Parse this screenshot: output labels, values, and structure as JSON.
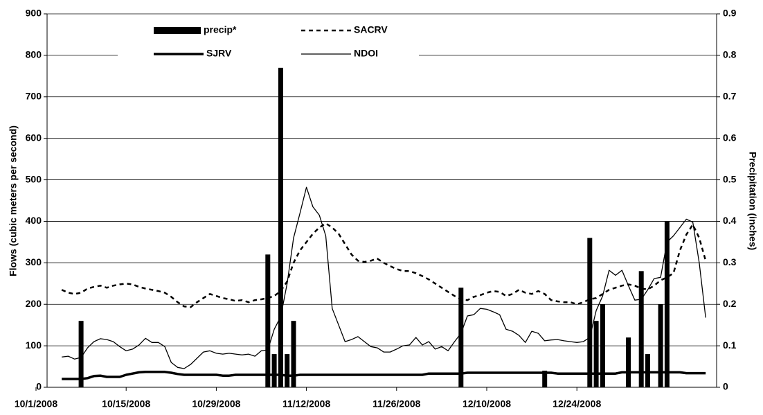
{
  "chart_data": {
    "type": "combo",
    "ylabel": "Flows (cubic meters per second)",
    "y2label": "Precipitation (inches)",
    "categories": [
      "10/1/2008",
      null,
      null,
      null,
      null,
      null,
      null,
      null,
      null,
      null,
      null,
      null,
      null,
      null,
      "10/15/2008",
      null,
      null,
      null,
      null,
      null,
      null,
      null,
      null,
      null,
      null,
      null,
      null,
      null,
      "10/29/2008",
      null,
      null,
      null,
      null,
      null,
      null,
      null,
      null,
      null,
      null,
      null,
      null,
      null,
      "11/12/2008",
      null,
      null,
      null,
      null,
      null,
      null,
      null,
      null,
      null,
      null,
      null,
      null,
      null,
      "11/26/2008",
      null,
      null,
      null,
      null,
      null,
      null,
      null,
      null,
      null,
      null,
      null,
      null,
      null,
      "12/10/2008",
      null,
      null,
      null,
      null,
      null,
      null,
      null,
      null,
      null,
      null,
      null,
      null,
      null,
      "12/24/2008",
      null,
      null,
      null,
      null,
      null,
      null,
      null,
      null,
      null,
      null,
      null,
      null,
      null,
      null,
      null,
      null,
      null,
      null,
      null,
      null
    ],
    "ylim": [
      0,
      900
    ],
    "yticks": [
      0,
      100,
      200,
      300,
      400,
      500,
      600,
      700,
      800,
      900
    ],
    "y2lim": [
      0,
      0.9
    ],
    "y2ticks": [
      0,
      0.1,
      0.2,
      0.3,
      0.4,
      0.5,
      0.6,
      0.7,
      0.8,
      0.9
    ],
    "grid": true,
    "legend": "top",
    "series": [
      {
        "name": "precip*",
        "type": "bar",
        "axis": "y2",
        "color": "#000000",
        "values": [
          null,
          null,
          null,
          null,
          null,
          null,
          null,
          0.16,
          null,
          null,
          null,
          null,
          null,
          null,
          null,
          null,
          null,
          null,
          null,
          null,
          null,
          null,
          null,
          null,
          null,
          null,
          null,
          null,
          null,
          null,
          null,
          null,
          null,
          null,
          null,
          null,
          0.32,
          0.08,
          0.77,
          0.08,
          0.16,
          null,
          null,
          null,
          null,
          null,
          null,
          null,
          null,
          null,
          null,
          null,
          null,
          null,
          null,
          null,
          null,
          null,
          null,
          null,
          null,
          null,
          null,
          null,
          null,
          null,
          0.24,
          null,
          null,
          null,
          null,
          null,
          null,
          null,
          null,
          null,
          null,
          null,
          null,
          0.04,
          null,
          null,
          null,
          null,
          null,
          null,
          0.36,
          0.16,
          0.2,
          null,
          null,
          null,
          0.12,
          null,
          0.28,
          0.08,
          null,
          0.2,
          0.4,
          null,
          null,
          null,
          null,
          null,
          null
        ]
      },
      {
        "name": "SACRV",
        "type": "line",
        "color": "#000000",
        "linestyle": "dashed",
        "linewidth": 2.5,
        "values": [
          null,
          null,
          null,
          null,
          235,
          228,
          225,
          228,
          238,
          242,
          245,
          240,
          245,
          248,
          250,
          248,
          242,
          238,
          235,
          232,
          228,
          218,
          205,
          195,
          193,
          205,
          215,
          225,
          220,
          215,
          212,
          208,
          210,
          205,
          210,
          212,
          215,
          220,
          232,
          255,
          300,
          330,
          350,
          370,
          385,
          395,
          385,
          370,
          345,
          320,
          305,
          302,
          305,
          310,
          300,
          292,
          285,
          280,
          280,
          275,
          268,
          260,
          250,
          240,
          230,
          220,
          212,
          210,
          218,
          222,
          228,
          232,
          230,
          220,
          225,
          235,
          228,
          225,
          232,
          225,
          210,
          207,
          205,
          205,
          200,
          205,
          212,
          215,
          225,
          235,
          240,
          245,
          248,
          245,
          238,
          236,
          245,
          258,
          265,
          275,
          330,
          368,
          392,
          360,
          305
        ]
      },
      {
        "name": "SJRV",
        "type": "line",
        "color": "#000000",
        "linestyle": "solid",
        "linewidth": 3.5,
        "values": [
          null,
          null,
          null,
          null,
          20,
          20,
          20,
          20,
          22,
          27,
          28,
          25,
          25,
          25,
          30,
          33,
          36,
          37,
          37,
          37,
          37,
          35,
          32,
          30,
          30,
          30,
          30,
          30,
          30,
          28,
          28,
          30,
          30,
          30,
          30,
          30,
          30,
          30,
          30,
          28,
          28,
          30,
          30,
          30,
          30,
          30,
          30,
          30,
          30,
          30,
          30,
          30,
          30,
          30,
          30,
          30,
          30,
          30,
          30,
          30,
          30,
          33,
          33,
          33,
          33,
          33,
          33,
          35,
          35,
          35,
          35,
          35,
          35,
          35,
          35,
          35,
          35,
          35,
          35,
          35,
          35,
          33,
          33,
          33,
          33,
          33,
          33,
          33,
          33,
          33,
          33,
          36,
          36,
          36,
          36,
          36,
          36,
          36,
          36,
          36,
          36,
          34,
          34,
          34,
          34
        ]
      },
      {
        "name": "NDOI",
        "type": "line",
        "color": "#000000",
        "linestyle": "solid",
        "linewidth": 1.3,
        "values": [
          null,
          null,
          null,
          null,
          73,
          75,
          68,
          72,
          95,
          110,
          117,
          115,
          110,
          98,
          88,
          92,
          102,
          118,
          108,
          108,
          98,
          60,
          48,
          45,
          55,
          70,
          85,
          88,
          82,
          80,
          82,
          80,
          78,
          80,
          75,
          88,
          90,
          140,
          170,
          250,
          360,
          420,
          482,
          435,
          415,
          365,
          190,
          150,
          110,
          115,
          122,
          110,
          98,
          95,
          85,
          85,
          92,
          100,
          102,
          120,
          102,
          110,
          92,
          98,
          88,
          110,
          130,
          172,
          175,
          190,
          188,
          182,
          175,
          140,
          135,
          125,
          108,
          135,
          130,
          112,
          114,
          115,
          112,
          110,
          108,
          110,
          120,
          185,
          220,
          282,
          270,
          282,
          245,
          210,
          212,
          235,
          262,
          265,
          350,
          365,
          385,
          405,
          398,
          300,
          168
        ]
      }
    ]
  }
}
